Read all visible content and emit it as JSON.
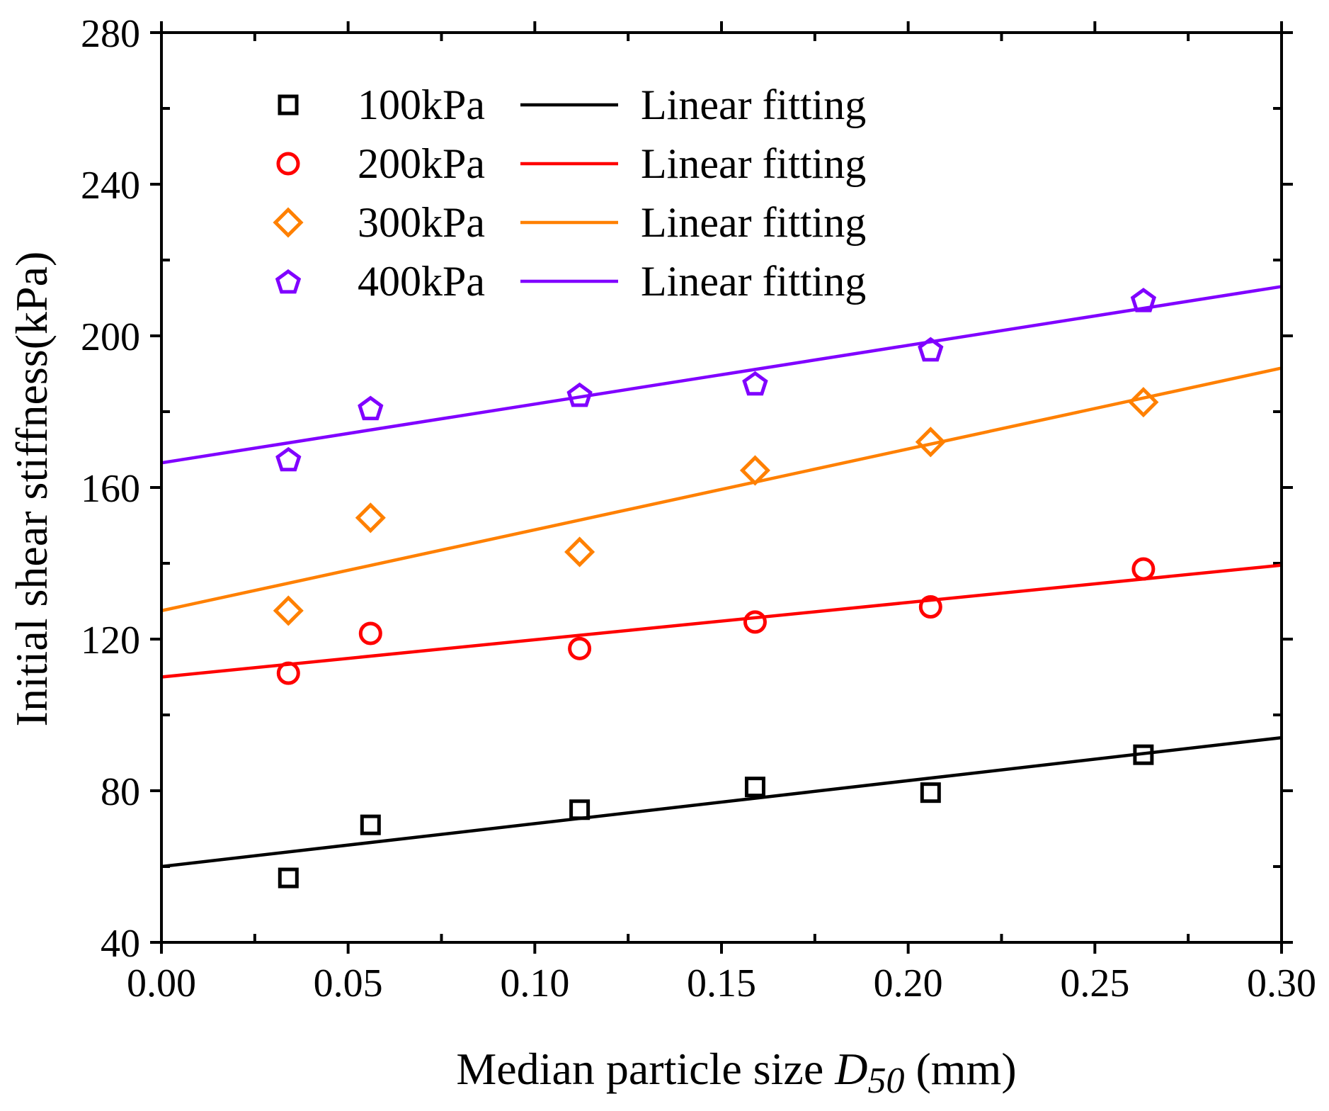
{
  "chart_data": {
    "type": "scatter",
    "title": "",
    "xlabel_main": "Median particle size ",
    "xlabel_symbol": "D",
    "xlabel_subscript": "50",
    "xlabel_unit": " (mm)",
    "ylabel": "Initial shear stiffness(kPa)",
    "xlim": [
      0.0,
      0.3
    ],
    "ylim": [
      40,
      280
    ],
    "xticks": [
      0.0,
      0.05,
      0.1,
      0.15,
      0.2,
      0.25,
      0.3
    ],
    "xtick_labels": [
      "0.00",
      "0.05",
      "0.10",
      "0.15",
      "0.20",
      "0.25",
      "0.30"
    ],
    "yticks": [
      40,
      80,
      120,
      160,
      200,
      240,
      280
    ],
    "ytick_labels": [
      "40",
      "80",
      "120",
      "160",
      "200",
      "240",
      "280"
    ],
    "x": [
      0.034,
      0.056,
      0.112,
      0.159,
      0.206,
      0.263
    ],
    "legend_position": "top-left",
    "series": [
      {
        "name": "100kPa",
        "marker": "square",
        "color": "#000000",
        "values": [
          57,
          71,
          75,
          81,
          79.5,
          89.5
        ],
        "fit_label": "Linear fitting",
        "fit": [
          60,
          94
        ]
      },
      {
        "name": "200kPa",
        "marker": "circle",
        "color": "#ff0000",
        "values": [
          111,
          121.5,
          117.5,
          124.5,
          128.5,
          138.5
        ],
        "fit_label": "Linear fitting",
        "fit": [
          110,
          139.5
        ]
      },
      {
        "name": "300kPa",
        "marker": "diamond",
        "color": "#ff8000",
        "values": [
          127.5,
          152,
          143,
          164.5,
          172,
          182.5
        ],
        "fit_label": "Linear fitting",
        "fit": [
          127.5,
          191.5
        ]
      },
      {
        "name": "400kPa",
        "marker": "pentagon",
        "color": "#8000ff",
        "values": [
          167.5,
          181,
          184.5,
          187.5,
          196.5,
          209.5
        ],
        "fit_label": "Linear fitting",
        "fit": [
          166.5,
          213
        ]
      }
    ]
  }
}
